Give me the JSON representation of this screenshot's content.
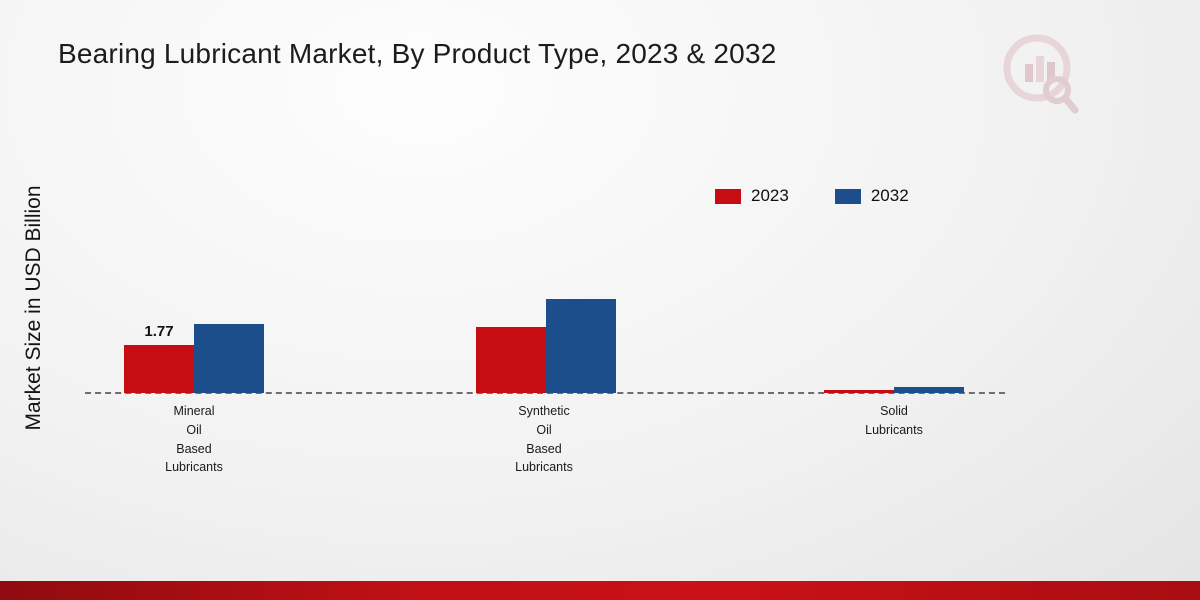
{
  "title": "Bearing Lubricant Market, By Product Type, 2023 & 2032",
  "ylabel": "Market Size in USD Billion",
  "legend": [
    {
      "label": "2023",
      "color": "#c50d12"
    },
    {
      "label": "2032",
      "color": "#1b4e8a"
    }
  ],
  "chart_data": {
    "type": "bar",
    "title": "Bearing Lubricant Market, By Product Type, 2023 & 2032",
    "ylabel": "Market Size in USD Billion",
    "xlabel": "",
    "ylim": [
      0,
      4
    ],
    "grid": false,
    "legend_position": "top-right",
    "baseline_style": "dashed",
    "categories": [
      "Mineral Oil Based Lubricants",
      "Synthetic Oil Based Lubricants",
      "Solid Lubricants"
    ],
    "categories_display": [
      "Mineral\nOil\nBased\nLubricants",
      "Synthetic\nOil\nBased\nLubricants",
      "Solid\nLubricants"
    ],
    "series": [
      {
        "name": "2023",
        "color": "#c50d12",
        "values": [
          1.77,
          2.45,
          0.12
        ]
      },
      {
        "name": "2032",
        "color": "#1b4e8a",
        "values": [
          2.55,
          3.5,
          0.22
        ]
      }
    ],
    "data_labels_shown": [
      "1.77"
    ]
  },
  "icons": {
    "watermark": "market-research-logo-watermark"
  }
}
